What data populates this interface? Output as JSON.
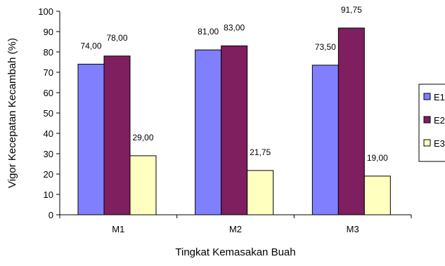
{
  "chart_data": {
    "type": "bar",
    "title": "",
    "xlabel": "Tingkat Kemasakan Buah",
    "ylabel": "Vigor Kecepatan Kecambah (%)",
    "ylim": [
      0,
      100
    ],
    "yticks": [
      "0",
      "10",
      "20",
      "30",
      "40",
      "50",
      "60",
      "70",
      "80",
      "90",
      "100"
    ],
    "categories": [
      "M1",
      "M2",
      "M3"
    ],
    "series": [
      {
        "name": "E1",
        "values": [
          74.0,
          81.0,
          73.5
        ],
        "labels": [
          "74,00",
          "81,00",
          "73,50"
        ],
        "color": "#8080ff"
      },
      {
        "name": "E2",
        "values": [
          78.0,
          83.0,
          91.75
        ],
        "labels": [
          "78,00",
          "83,00",
          "91,75"
        ],
        "color": "#7f1f5f"
      },
      {
        "name": "E3",
        "values": [
          29.0,
          21.75,
          19.0
        ],
        "labels": [
          "29,00",
          "21,75",
          "19,00"
        ],
        "color": "#ffffc0"
      }
    ],
    "legend": {
      "placement": "right"
    },
    "grid": false
  }
}
